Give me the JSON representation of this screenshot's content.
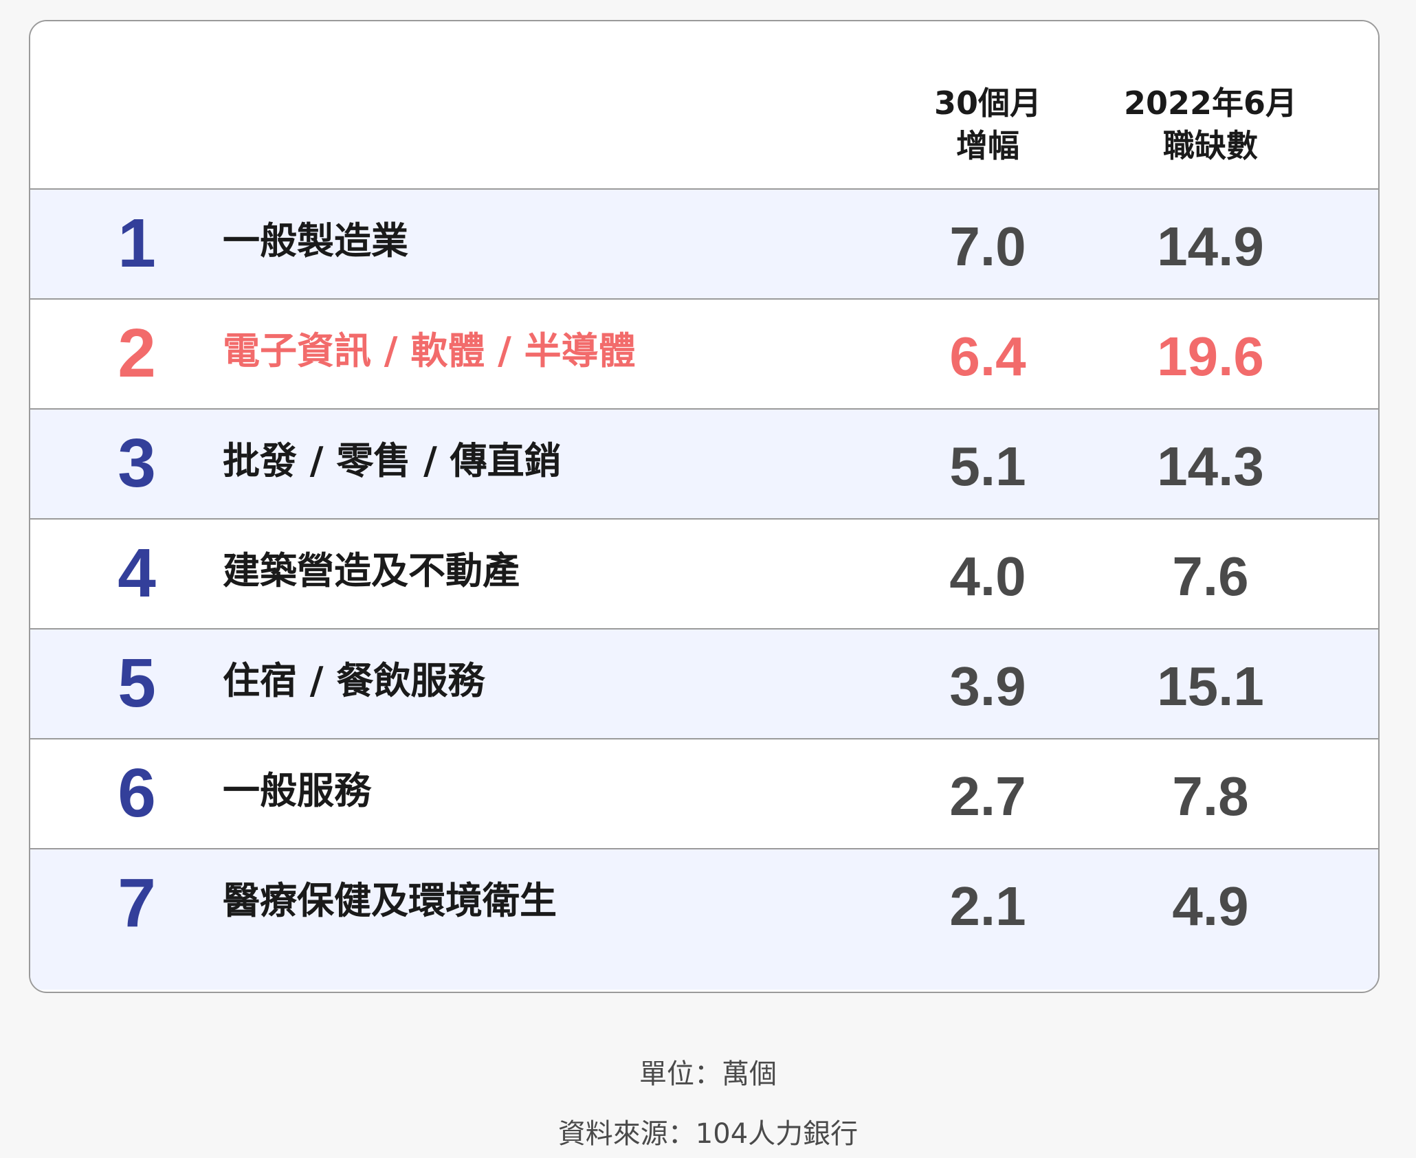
{
  "chart_data": {
    "type": "table",
    "columns": [
      {
        "line1": "30個月",
        "line2": "增幅"
      },
      {
        "line1": "2022年6月",
        "line2": "職缺數"
      }
    ],
    "rows": [
      {
        "rank": "1",
        "name": "一般製造業",
        "growth": "7.0",
        "vacancies": "14.9"
      },
      {
        "rank": "2",
        "name": "電子資訊 / 軟體 / 半導體",
        "growth": "6.4",
        "vacancies": "19.6"
      },
      {
        "rank": "3",
        "name": "批發 / 零售 / 傳直銷",
        "growth": "5.1",
        "vacancies": "14.3"
      },
      {
        "rank": "4",
        "name": "建築營造及不動產",
        "growth": "4.0",
        "vacancies": "7.6"
      },
      {
        "rank": "5",
        "name": "住宿 / 餐飲服務",
        "growth": "3.9",
        "vacancies": "15.1"
      },
      {
        "rank": "6",
        "name": "一般服務",
        "growth": "2.7",
        "vacancies": "7.8"
      },
      {
        "rank": "7",
        "name": "醫療保健及環境衛生",
        "growth": "2.1",
        "vacancies": "4.9"
      }
    ],
    "highlighted_row": "2"
  },
  "footer": {
    "unit": "單位：萬個",
    "source": "資料來源：104人力銀行"
  },
  "colors": {
    "rank": "#333f9a",
    "highlight": "#f26b6b",
    "shaded_row": "#f1f4ff",
    "border": "#9a9a9a"
  }
}
